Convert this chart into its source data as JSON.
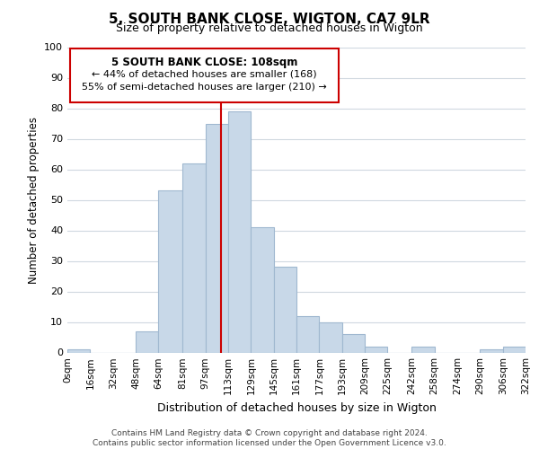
{
  "title": "5, SOUTH BANK CLOSE, WIGTON, CA7 9LR",
  "subtitle": "Size of property relative to detached houses in Wigton",
  "xlabel": "Distribution of detached houses by size in Wigton",
  "ylabel": "Number of detached properties",
  "bar_color": "#c8d8e8",
  "bar_edge_color": "#a0b8d0",
  "vline_x": 108,
  "vline_color": "#cc0000",
  "bin_edges": [
    0,
    16,
    32,
    48,
    64,
    81,
    97,
    113,
    129,
    145,
    161,
    177,
    193,
    209,
    225,
    242,
    258,
    274,
    290,
    306,
    322
  ],
  "bin_labels": [
    "0sqm",
    "16sqm",
    "32sqm",
    "48sqm",
    "64sqm",
    "81sqm",
    "97sqm",
    "113sqm",
    "129sqm",
    "145sqm",
    "161sqm",
    "177sqm",
    "193sqm",
    "209sqm",
    "225sqm",
    "242sqm",
    "258sqm",
    "274sqm",
    "290sqm",
    "306sqm",
    "322sqm"
  ],
  "counts": [
    1,
    0,
    0,
    7,
    53,
    62,
    75,
    79,
    41,
    28,
    12,
    10,
    6,
    2,
    0,
    2,
    0,
    0,
    1,
    2
  ],
  "ylim": [
    0,
    100
  ],
  "ann_line1": "5 SOUTH BANK CLOSE: 108sqm",
  "ann_line2": "← 44% of detached houses are smaller (168)",
  "ann_line3": "55% of semi-detached houses are larger (210) →",
  "footer_line1": "Contains HM Land Registry data © Crown copyright and database right 2024.",
  "footer_line2": "Contains public sector information licensed under the Open Government Licence v3.0.",
  "background_color": "#ffffff",
  "grid_color": "#d0d8e0"
}
